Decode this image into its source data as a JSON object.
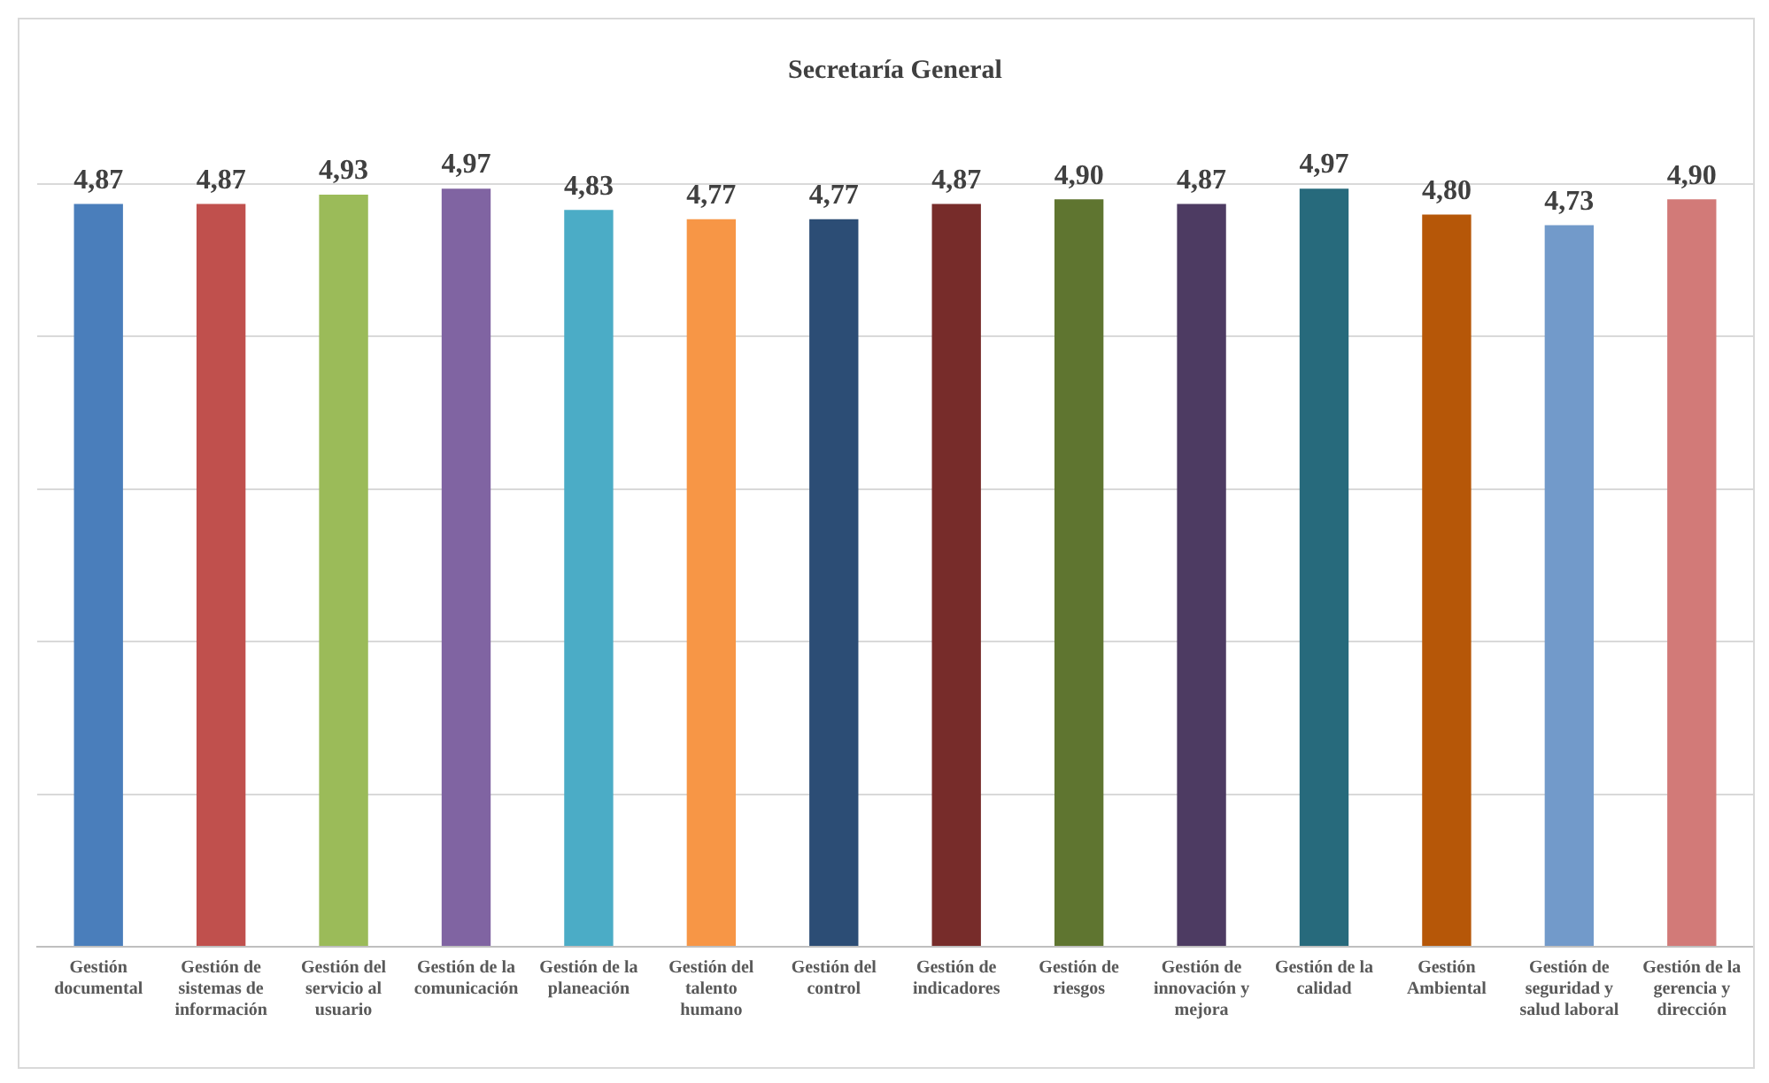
{
  "chart_data": {
    "type": "bar",
    "title": "Secretaría General",
    "categories": [
      "Gestión documental",
      "Gestión de sistemas de información",
      "Gestión del servicio al usuario",
      "Gestión de la comunicación",
      "Gestión de la planeación",
      "Gestión del talento humano",
      "Gestión del control",
      "Gestión de indicadores",
      "Gestión de riesgos",
      "Gestión de innovación y mejora",
      "Gestión de la calidad",
      "Gestión Ambiental",
      "Gestión de seguridad y salud laboral",
      "Gestión de la gerencia y dirección"
    ],
    "values": [
      4.87,
      4.87,
      4.93,
      4.97,
      4.83,
      4.77,
      4.77,
      4.87,
      4.9,
      4.87,
      4.97,
      4.8,
      4.73,
      4.9
    ],
    "value_labels": [
      "4,87",
      "4,87",
      "4,93",
      "4,97",
      "4,83",
      "4,77",
      "4,77",
      "4,87",
      "4,90",
      "4,87",
      "4,97",
      "4,80",
      "4,73",
      "4,90"
    ],
    "colors": [
      "#4a7ebb",
      "#c0504d",
      "#9bbb59",
      "#8064a2",
      "#4bacc6",
      "#f79646",
      "#2c4d75",
      "#772c2a",
      "#5f7530",
      "#4d3b62",
      "#276a7c",
      "#b65708",
      "#729aca",
      "#d27a78"
    ],
    "ylim": [
      0,
      5
    ],
    "yticks": [
      {
        "value": 0,
        "label": null
      },
      {
        "value": 1,
        "label": null
      },
      {
        "value": 2,
        "label": null
      },
      {
        "value": 3,
        "label": null
      },
      {
        "value": 4,
        "label": null
      },
      {
        "value": 5,
        "label": null
      }
    ],
    "tick_labels": "x",
    "grid": "y",
    "legend": false
  }
}
